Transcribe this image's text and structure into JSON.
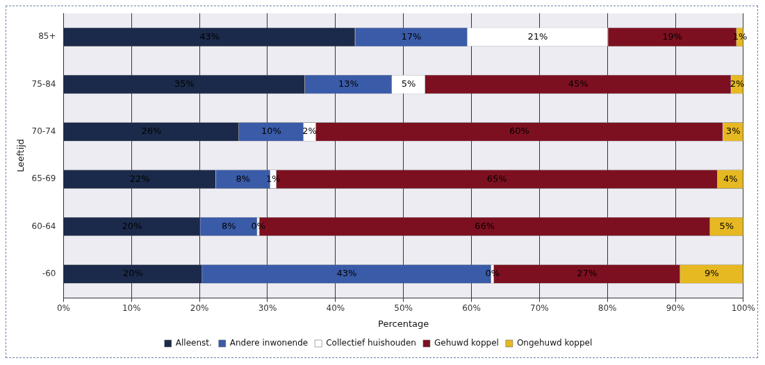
{
  "chart_data": {
    "type": "bar",
    "orientation": "horizontal",
    "stacked": true,
    "xlabel": "Percentage",
    "ylabel": "Leeftijd",
    "categories": [
      "85+",
      "75-84",
      "70-74",
      "65-69",
      "60-64",
      "-60"
    ],
    "series": [
      {
        "name": "Alleenst.",
        "color": "#1b2a4a",
        "values": [
          42.9,
          35.5,
          25.8,
          22.4,
          20.1,
          20.4
        ],
        "value_labels": [
          "43%",
          "35%",
          "26%",
          "22%",
          "20%",
          "20%"
        ]
      },
      {
        "name": "Andere inwonende",
        "color": "#3a5ba8",
        "values": [
          16.5,
          12.8,
          9.5,
          8.0,
          8.4,
          42.5
        ],
        "value_labels": [
          "17%",
          "13%",
          "10%",
          "8%",
          "8%",
          "43%"
        ]
      },
      {
        "name": "Collectief huishouden",
        "color": "#ffffff",
        "values": [
          20.7,
          4.9,
          1.8,
          0.9,
          0.3,
          0.4
        ],
        "value_labels": [
          "21%",
          "5%",
          "2%",
          "1%",
          "0%",
          "0%"
        ]
      },
      {
        "name": "Gehuwd koppel",
        "color": "#7d1020",
        "values": [
          18.9,
          45.0,
          59.9,
          64.9,
          66.3,
          27.4
        ],
        "value_labels": [
          "19%",
          "45%",
          "60%",
          "65%",
          "66%",
          "27%"
        ]
      },
      {
        "name": "Ongehuwd koppel",
        "color": "#e6b822",
        "values": [
          1.0,
          1.8,
          3.0,
          3.8,
          4.9,
          9.3
        ],
        "value_labels": [
          "1%",
          "2%",
          "3%",
          "4%",
          "5%",
          "9%"
        ]
      }
    ],
    "xlim": [
      0,
      100
    ],
    "xticks": [
      {
        "value": 0,
        "label": "0%"
      },
      {
        "value": 10,
        "label": "10%"
      },
      {
        "value": 20,
        "label": "20%"
      },
      {
        "value": 30,
        "label": "30%"
      },
      {
        "value": 40,
        "label": "40%"
      },
      {
        "value": 50,
        "label": "50%"
      },
      {
        "value": 60,
        "label": "60%"
      },
      {
        "value": 70,
        "label": "70%"
      },
      {
        "value": 80,
        "label": "80%"
      },
      {
        "value": 90,
        "label": "90%"
      },
      {
        "value": 100,
        "label": "100%"
      }
    ],
    "grid": "x",
    "legend": "bottom"
  }
}
